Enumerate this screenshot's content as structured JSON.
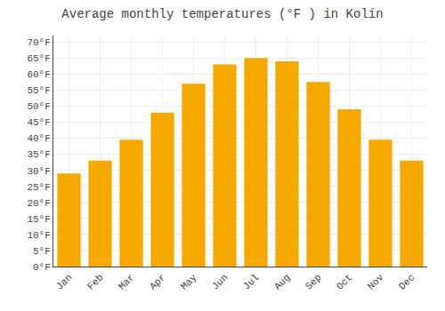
{
  "chart_data": {
    "type": "bar",
    "title": "Average monthly temperatures (°F ) in Kolín",
    "categories": [
      "Jan",
      "Feb",
      "Mar",
      "Apr",
      "May",
      "Jun",
      "Jul",
      "Aug",
      "Sep",
      "Oct",
      "Nov",
      "Dec"
    ],
    "values": [
      29.0,
      33.0,
      39.5,
      48.0,
      57.0,
      63.0,
      65.0,
      64.0,
      57.5,
      49.0,
      39.5,
      33.0
    ],
    "color": "#F5A800",
    "ylim": [
      0,
      72
    ],
    "yticks": [
      {
        "value": 0,
        "label": "0°F"
      },
      {
        "value": 5,
        "label": "5°F"
      },
      {
        "value": 10,
        "label": "10°F"
      },
      {
        "value": 15,
        "label": "15°F"
      },
      {
        "value": 20,
        "label": "20°F"
      },
      {
        "value": 25,
        "label": "25°F"
      },
      {
        "value": 30,
        "label": "30°F"
      },
      {
        "value": 35,
        "label": "35°F"
      },
      {
        "value": 40,
        "label": "40°F"
      },
      {
        "value": 45,
        "label": "45°F"
      },
      {
        "value": 50,
        "label": "50°F"
      },
      {
        "value": 55,
        "label": "55°F"
      },
      {
        "value": 60,
        "label": "60°F"
      },
      {
        "value": 65,
        "label": "65°F"
      },
      {
        "value": 70,
        "label": "70°F"
      }
    ],
    "grid": true
  }
}
